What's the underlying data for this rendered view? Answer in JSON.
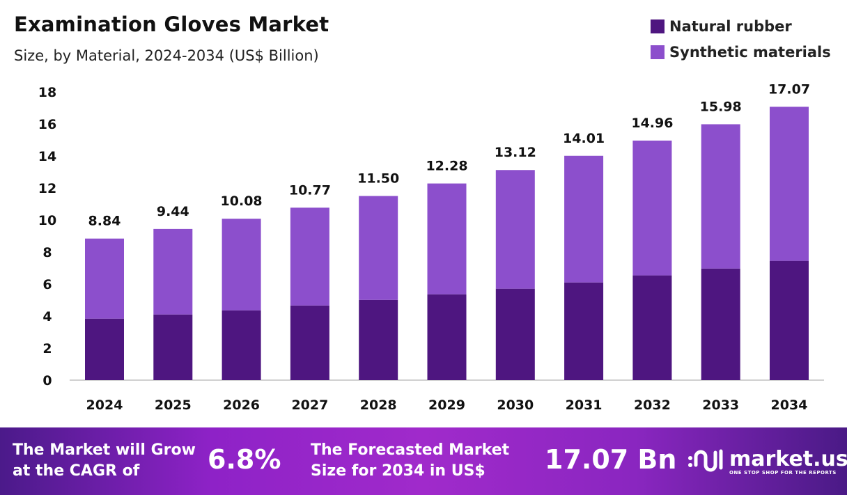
{
  "chart_data": {
    "type": "bar",
    "stacked": true,
    "title": "Examination Gloves Market",
    "subtitle": "Size, by Material, 2024-2034 (US$ Billion)",
    "categories": [
      "2024",
      "2025",
      "2026",
      "2027",
      "2028",
      "2029",
      "2030",
      "2031",
      "2032",
      "2033",
      "2034"
    ],
    "series": [
      {
        "name": "Natural rubber",
        "color": "#4e1680",
        "values": [
          3.84,
          4.1,
          4.36,
          4.66,
          5.01,
          5.36,
          5.71,
          6.1,
          6.54,
          6.97,
          7.45
        ]
      },
      {
        "name": "Synthetic materials",
        "color": "#8c4fcc",
        "values": [
          5.0,
          5.34,
          5.72,
          6.11,
          6.49,
          6.92,
          7.41,
          7.91,
          8.42,
          9.01,
          9.62
        ]
      }
    ],
    "totals": [
      "8.84",
      "9.44",
      "10.08",
      "10.77",
      "11.50",
      "12.28",
      "13.12",
      "14.01",
      "14.96",
      "15.98",
      "17.07"
    ],
    "ylim": [
      0,
      18
    ],
    "yticks": [
      0,
      2,
      4,
      6,
      8,
      10,
      12,
      14,
      16,
      18
    ],
    "grid": false,
    "legend_position": "top-right"
  },
  "footer": {
    "cagr_text_1": "The Market will Grow",
    "cagr_text_2": "at the CAGR of",
    "cagr_value": "6.8%",
    "forecast_text_1": "The Forecasted Market",
    "forecast_text_2": "Size for 2034 in US$",
    "forecast_value": "17.07 Bn",
    "logo_name": "market.us",
    "logo_tagline": "ONE STOP SHOP FOR THE REPORTS"
  }
}
